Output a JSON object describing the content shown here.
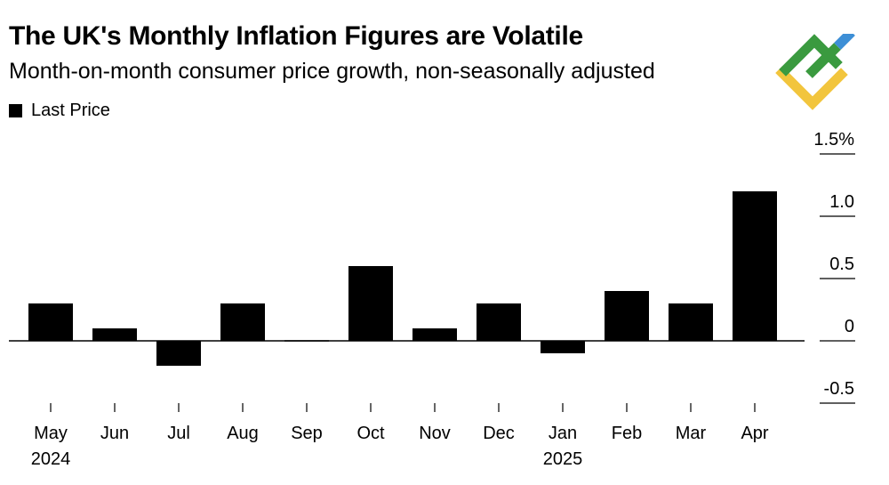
{
  "header": {
    "title": "The UK's Monthly Inflation Figures are Volatile",
    "subtitle": "Month-on-month consumer price growth, non-seasonally adjusted"
  },
  "legend": {
    "label": "Last Price"
  },
  "colors": {
    "bar": "#000000",
    "logo_green": "#3a9a3f",
    "logo_blue": "#3d8fd6",
    "logo_yellow": "#f2c53d"
  },
  "chart_data": {
    "type": "bar",
    "title": "The UK's Monthly Inflation Figures are Volatile",
    "subtitle": "Month-on-month consumer price growth, non-seasonally adjusted",
    "categories": [
      "May",
      "Jun",
      "Jul",
      "Aug",
      "Sep",
      "Oct",
      "Nov",
      "Dec",
      "Jan",
      "Feb",
      "Mar",
      "Apr"
    ],
    "year_labels": {
      "0": "2024",
      "8": "2025"
    },
    "series": [
      {
        "name": "Last Price",
        "values": [
          0.3,
          0.1,
          -0.2,
          0.3,
          0.0,
          0.6,
          0.1,
          0.3,
          -0.1,
          0.4,
          0.3,
          1.2
        ]
      }
    ],
    "ylim": [
      -0.5,
      1.5
    ],
    "yticks": [
      {
        "value": -0.5,
        "label": "-0.5"
      },
      {
        "value": 0,
        "label": "0"
      },
      {
        "value": 0.5,
        "label": "0.5"
      },
      {
        "value": 1.0,
        "label": "1.0"
      },
      {
        "value": 1.5,
        "label": "1.5%"
      }
    ],
    "xlabel": "",
    "ylabel": "",
    "grid": false,
    "legend_position": "top-left"
  }
}
